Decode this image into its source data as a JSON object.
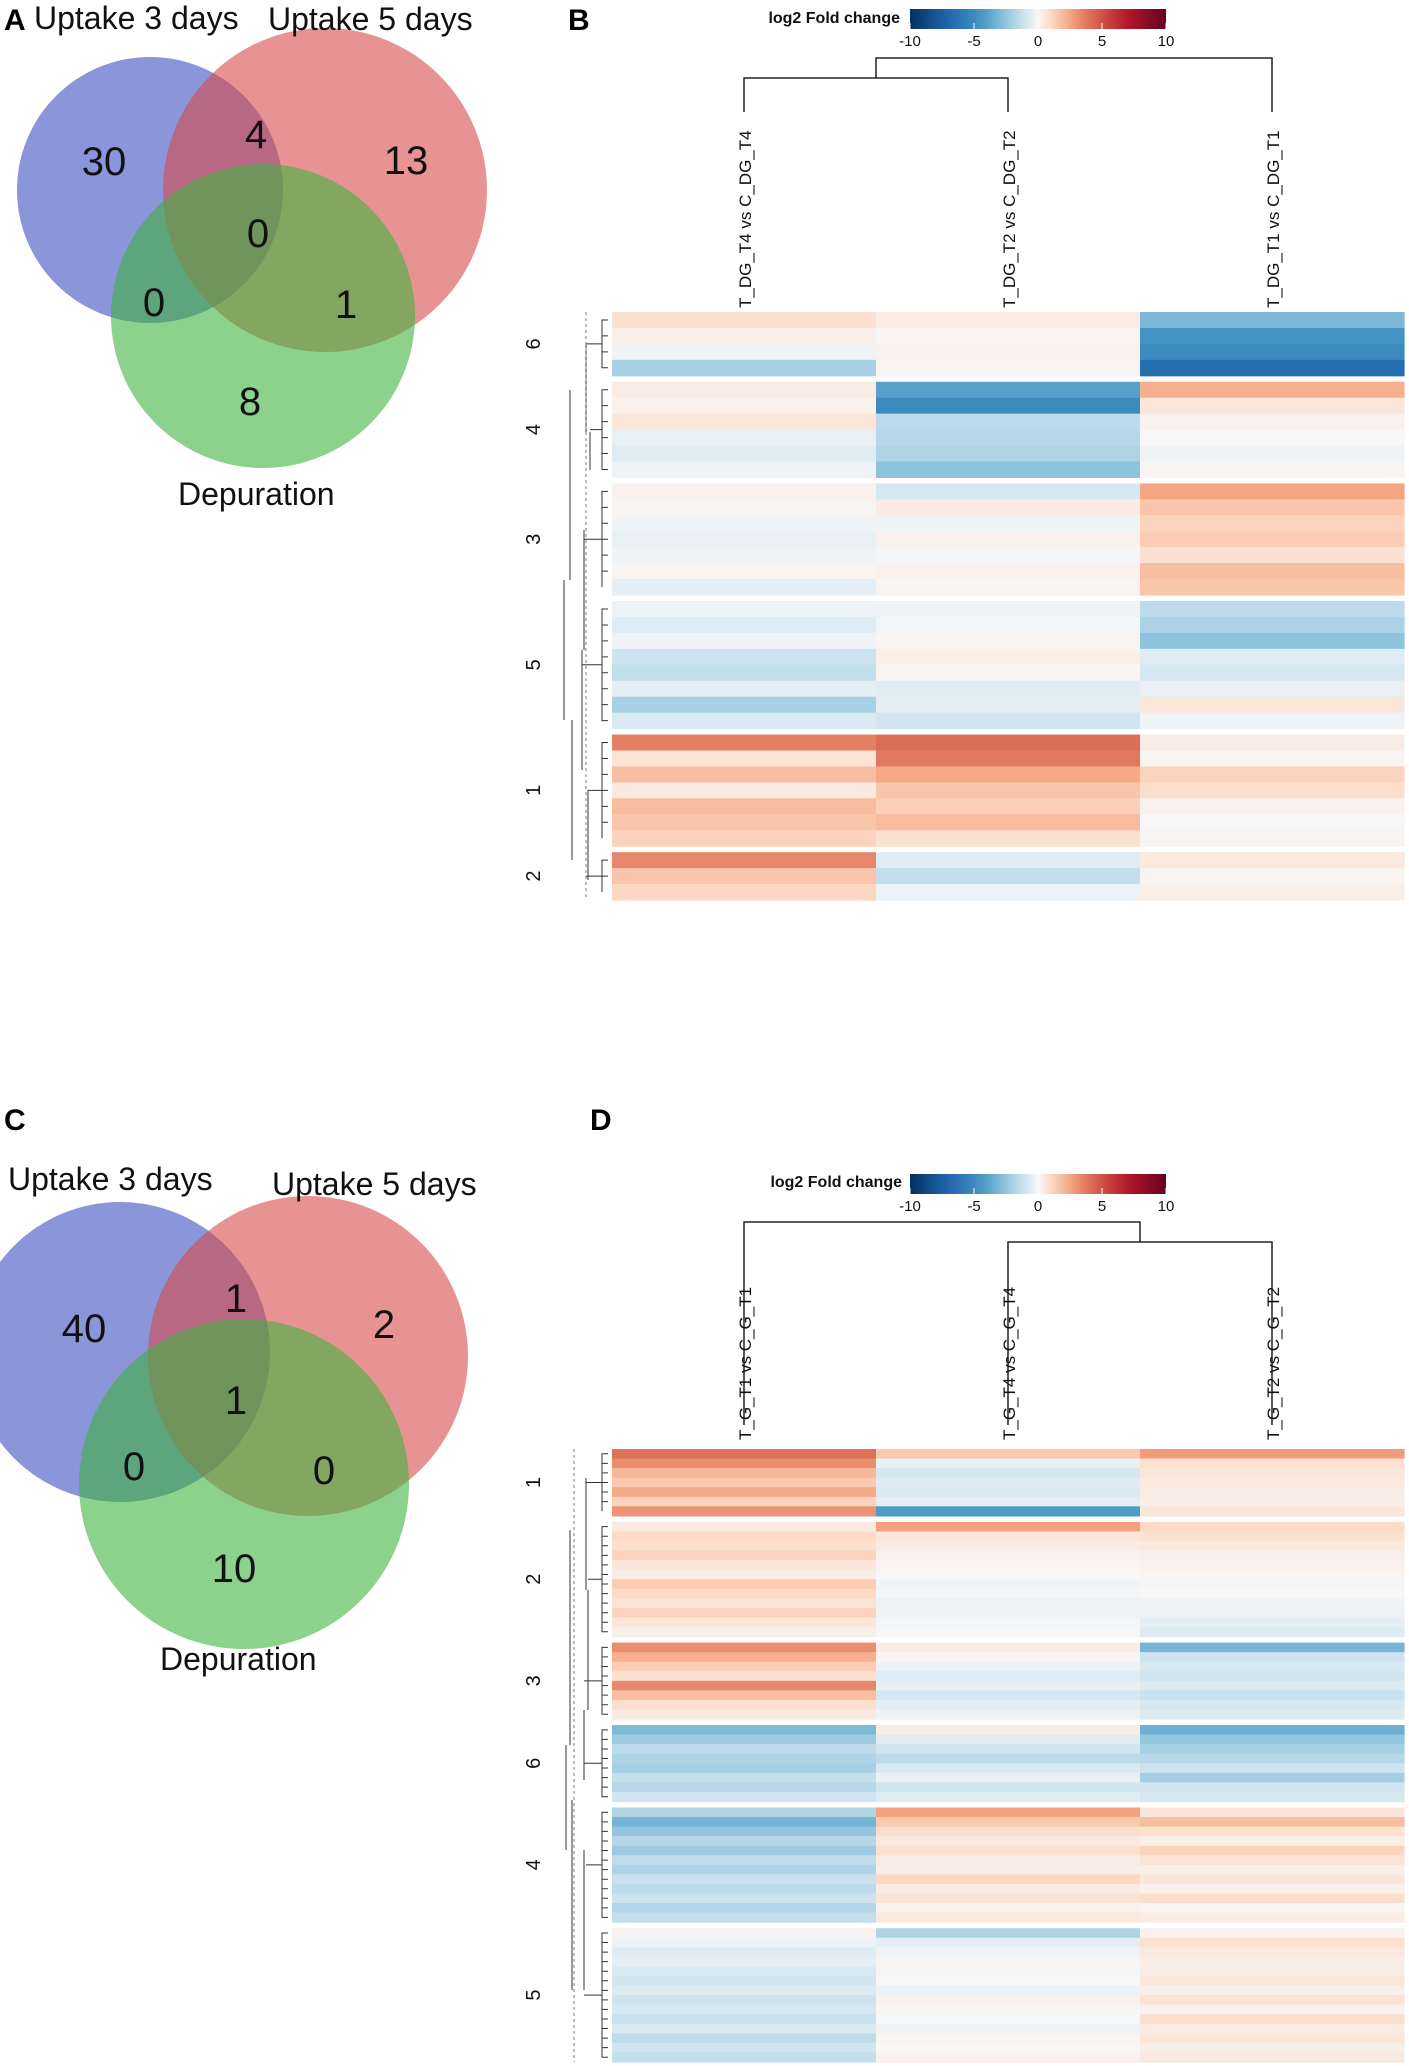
{
  "panels": {
    "a": "A",
    "b": "B",
    "c": "C",
    "d": "D"
  },
  "colors": {
    "set1": "#3d4fbf",
    "set2": "#d94b4b",
    "set3": "#3fb33f",
    "low": "#2166ac",
    "mid": "#f7f7f7",
    "high": "#b2182b"
  },
  "chart_data": [
    {
      "type": "venn",
      "panel": "A",
      "sets": [
        "Uptake 3 days",
        "Uptake 5 days",
        "Depuration"
      ],
      "regions": {
        "only_3d": "30",
        "only_5d": "13",
        "only_dep": "8",
        "3d_5d": "4",
        "3d_dep": "0",
        "5d_dep": "1",
        "all": "0"
      }
    },
    {
      "type": "heatmap",
      "panel": "B",
      "legend_title": "log2 Fold change",
      "legend_ticks": [
        "-10",
        "-5",
        "0",
        "5",
        "10"
      ],
      "value_range": [
        -10,
        10
      ],
      "columns": [
        "T_DG_T4 vs C_DG_T4",
        "T_DG_T2 vs C_DG_T2",
        "T_DG_T1 vs C_DG_T1"
      ],
      "clusters": [
        {
          "label": "6",
          "rows": [
            [
              0.8,
              0.4,
              -3.0
            ],
            [
              0.3,
              0.1,
              -4.5
            ],
            [
              -0.2,
              0.2,
              -5.0
            ],
            [
              -2.0,
              0.1,
              -6.5
            ]
          ]
        },
        {
          "label": "4",
          "rows": [
            [
              0.4,
              -4.0,
              2.2
            ],
            [
              0.2,
              -5.0,
              0.6
            ],
            [
              0.6,
              -1.5,
              0.2
            ],
            [
              -0.4,
              -1.6,
              0.0
            ],
            [
              -0.6,
              -1.8,
              -0.2
            ],
            [
              -0.2,
              -2.6,
              0.1
            ]
          ]
        },
        {
          "label": "3",
          "rows": [
            [
              0.2,
              -0.9,
              2.5
            ],
            [
              0.1,
              0.4,
              1.6
            ],
            [
              -0.2,
              -0.2,
              1.2
            ],
            [
              -0.4,
              0.2,
              1.4
            ],
            [
              -0.2,
              -0.1,
              0.8
            ],
            [
              0.1,
              0.2,
              1.8
            ],
            [
              -0.5,
              0.1,
              1.6
            ]
          ]
        },
        {
          "label": "5",
          "rows": [
            [
              -0.3,
              -0.2,
              -1.5
            ],
            [
              -0.6,
              -0.1,
              -1.9
            ],
            [
              -0.2,
              0.1,
              -2.6
            ],
            [
              -1.1,
              0.3,
              -0.6
            ],
            [
              -1.3,
              0.1,
              -0.9
            ],
            [
              -0.5,
              -0.6,
              -0.4
            ],
            [
              -2.0,
              -0.5,
              0.6
            ],
            [
              -0.8,
              -1.0,
              -0.2
            ]
          ]
        },
        {
          "label": "1",
          "rows": [
            [
              3.6,
              4.1,
              0.4
            ],
            [
              0.7,
              3.8,
              0.1
            ],
            [
              1.8,
              2.4,
              1.2
            ],
            [
              0.5,
              1.6,
              0.9
            ],
            [
              1.9,
              1.3,
              0.2
            ],
            [
              1.6,
              1.9,
              0.0
            ],
            [
              1.2,
              0.8,
              0.1
            ]
          ]
        },
        {
          "label": "2",
          "rows": [
            [
              3.4,
              -0.6,
              0.5
            ],
            [
              1.6,
              -1.3,
              0.1
            ],
            [
              1.1,
              -0.3,
              0.3
            ]
          ]
        }
      ]
    },
    {
      "type": "venn",
      "panel": "C",
      "sets": [
        "Uptake 3 days",
        "Uptake 5 days",
        "Depuration"
      ],
      "regions": {
        "only_3d": "40",
        "only_5d": "2",
        "only_dep": "10",
        "3d_5d": "1",
        "3d_dep": "0",
        "5d_dep": "0",
        "all": "1"
      }
    },
    {
      "type": "heatmap",
      "panel": "D",
      "legend_title": "log2 Fold change",
      "legend_ticks": [
        "-10",
        "-5",
        "0",
        "5",
        "10"
      ],
      "value_range": [
        -10,
        10
      ],
      "columns": [
        "T_G_T1 vs C_G_T1",
        "T_G_T4 vs C_G_T4",
        "T_G_T2 vs C_G_T2"
      ],
      "clusters": [
        {
          "label": "1",
          "rows": [
            [
              4.0,
              1.5,
              2.8
            ],
            [
              3.2,
              -0.4,
              0.8
            ],
            [
              2.0,
              -0.9,
              0.6
            ],
            [
              1.5,
              -0.6,
              0.5
            ],
            [
              2.4,
              -0.8,
              0.4
            ],
            [
              1.2,
              -0.5,
              0.3
            ],
            [
              3.0,
              -4.2,
              0.6
            ]
          ]
        },
        {
          "label": "2",
          "rows": [
            [
              0.5,
              2.6,
              1.0
            ],
            [
              1.0,
              0.6,
              0.8
            ],
            [
              0.8,
              0.4,
              0.5
            ],
            [
              1.2,
              0.2,
              0.3
            ],
            [
              0.6,
              0.1,
              0.2
            ],
            [
              0.4,
              0.0,
              0.1
            ],
            [
              1.4,
              -0.2,
              -0.1
            ],
            [
              1.0,
              -0.1,
              0.0
            ],
            [
              0.7,
              -0.3,
              -0.2
            ],
            [
              1.2,
              -0.2,
              -0.3
            ],
            [
              0.6,
              -0.1,
              -0.5
            ],
            [
              0.3,
              0.0,
              -0.7
            ]
          ]
        },
        {
          "label": "3",
          "rows": [
            [
              3.2,
              0.4,
              -3.2
            ],
            [
              2.2,
              0.1,
              -1.1
            ],
            [
              1.4,
              -0.3,
              -0.8
            ],
            [
              0.8,
              -0.6,
              -1.0
            ],
            [
              3.3,
              -0.4,
              -0.7
            ],
            [
              1.8,
              -0.9,
              -1.2
            ],
            [
              0.9,
              -0.5,
              -0.9
            ],
            [
              0.5,
              -0.3,
              -0.7
            ]
          ]
        },
        {
          "label": "6",
          "rows": [
            [
              -3.0,
              0.4,
              -3.4
            ],
            [
              -2.2,
              -0.6,
              -2.5
            ],
            [
              -1.5,
              -1.0,
              -2.0
            ],
            [
              -1.8,
              -1.5,
              -1.6
            ],
            [
              -2.0,
              -0.8,
              -1.1
            ],
            [
              -1.3,
              -0.4,
              -2.1
            ],
            [
              -1.6,
              -1.0,
              -1.0
            ],
            [
              -1.0,
              -0.6,
              -0.9
            ]
          ]
        },
        {
          "label": "4",
          "rows": [
            [
              -1.8,
              2.6,
              0.6
            ],
            [
              -3.2,
              1.5,
              1.8
            ],
            [
              -2.5,
              0.9,
              0.8
            ],
            [
              -1.6,
              0.5,
              0.3
            ],
            [
              -2.2,
              0.8,
              1.2
            ],
            [
              -1.4,
              0.4,
              0.7
            ],
            [
              -1.8,
              0.3,
              0.3
            ],
            [
              -1.2,
              1.1,
              0.6
            ],
            [
              -1.5,
              0.4,
              0.2
            ],
            [
              -1.1,
              0.7,
              0.9
            ],
            [
              -1.7,
              0.2,
              0.1
            ],
            [
              -1.3,
              0.5,
              0.4
            ]
          ]
        },
        {
          "label": "5",
          "rows": [
            [
              0.2,
              -1.8,
              0.2
            ],
            [
              -0.3,
              -0.5,
              0.8
            ],
            [
              -0.6,
              -0.2,
              0.5
            ],
            [
              -0.5,
              0.1,
              0.3
            ],
            [
              -0.8,
              -0.1,
              0.4
            ],
            [
              -1.0,
              0.0,
              0.6
            ],
            [
              -0.7,
              -0.3,
              0.3
            ],
            [
              -1.1,
              0.2,
              0.7
            ],
            [
              -0.9,
              0.1,
              0.2
            ],
            [
              -1.2,
              0.0,
              0.9
            ],
            [
              -0.8,
              -0.2,
              0.4
            ],
            [
              -1.4,
              0.1,
              0.6
            ],
            [
              -1.0,
              0.0,
              0.3
            ],
            [
              -1.3,
              0.2,
              0.5
            ]
          ]
        }
      ]
    }
  ]
}
